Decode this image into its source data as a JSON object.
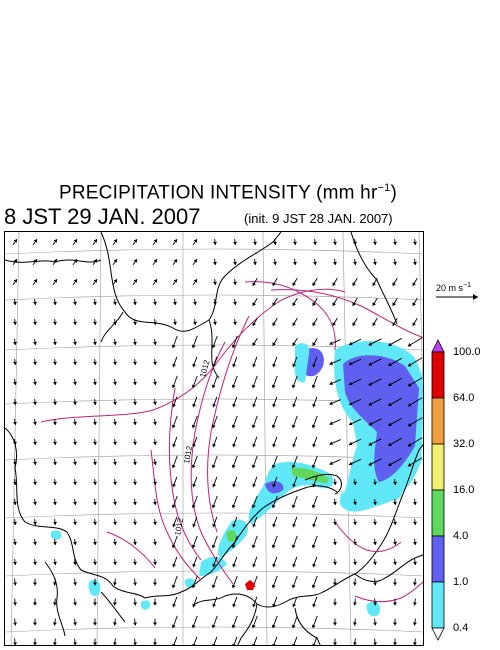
{
  "header": {
    "title_main": "PRECIPITATION INTENSITY (mm hr",
    "title_sup": "−1",
    "title_end": ")",
    "valid_time": "8 JST 29 JAN. 2007",
    "init_time": "(init. 9 JST 28 JAN. 2007)"
  },
  "reference_vector": {
    "label": "20 m s",
    "label_sup": "−1",
    "value_ms": 20
  },
  "colorbar": {
    "levels": [
      "100.0",
      "64.0",
      "32.0",
      "16.0",
      "4.0",
      "1.0",
      "0.4"
    ],
    "colors": {
      "over": "#c040f0",
      "band_100": "#e00000",
      "band_64": "#f0a040",
      "band_32": "#f0f070",
      "band_16": "#60d860",
      "band_4": "#6060f0",
      "band_1": "#60e8f8",
      "under": "#ffffff"
    }
  },
  "map": {
    "isobar_labels": [
      "1012",
      "1012",
      "1012"
    ],
    "colors": {
      "isobar": "#c0207a",
      "coast": "#000000",
      "grid": "#9a9a9a",
      "precip_light": "#60e8f8",
      "precip_moderate": "#6060f0",
      "precip_heavy": "#60d860",
      "marker": "#e00000"
    }
  }
}
